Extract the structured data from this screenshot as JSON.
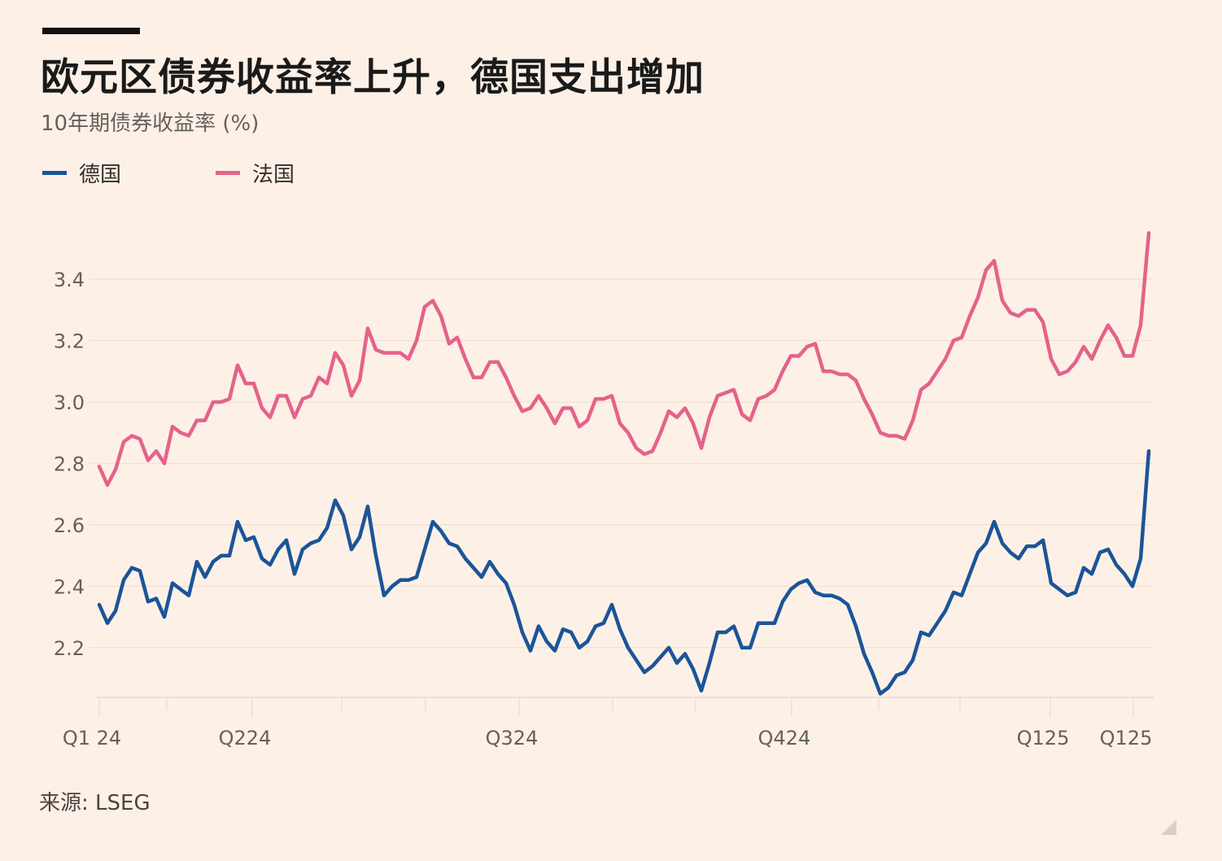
{
  "title": "欧元区债券收益率上升，德国支出增加",
  "subtitle": "10年期债券收益率 (%)",
  "source": "来源: LSEG",
  "chart_data": {
    "type": "line",
    "title": "欧元区债券收益率上升，德国支出增加",
    "ylabel": "10年期债券收益率 (%)",
    "xlabel": "",
    "ylim": [
      2.038,
      3.62
    ],
    "xlim": [
      0,
      129
    ],
    "grid": true,
    "legend_position": "top-left",
    "yticks": [
      2.2,
      2.4,
      2.6,
      2.8,
      3.0,
      3.2,
      3.4
    ],
    "ytick_labels": [
      "2.2",
      "2.4",
      "2.6",
      "2.8",
      "3.0",
      "3.2",
      "3.4"
    ],
    "xticks": [
      {
        "at": 0,
        "label": "Q1 24"
      },
      {
        "at": 18.8,
        "label": "Q224"
      },
      {
        "at": 51.6,
        "label": "Q324"
      },
      {
        "at": 85.1,
        "label": "Q424"
      },
      {
        "at": 116.9,
        "label": "Q125"
      },
      {
        "at": 127.1,
        "label": "Q125"
      }
    ],
    "minor_xticks": [
      8.3,
      29.8,
      40.1,
      63.1,
      73.3,
      95.8,
      105.8
    ],
    "series": [
      {
        "name": "德国",
        "color": "#1b5499",
        "values": [
          2.34,
          2.28,
          2.32,
          2.42,
          2.46,
          2.45,
          2.35,
          2.36,
          2.3,
          2.41,
          2.39,
          2.37,
          2.48,
          2.43,
          2.48,
          2.5,
          2.5,
          2.61,
          2.55,
          2.56,
          2.49,
          2.47,
          2.52,
          2.55,
          2.44,
          2.52,
          2.54,
          2.55,
          2.59,
          2.68,
          2.63,
          2.52,
          2.56,
          2.66,
          2.5,
          2.37,
          2.4,
          2.42,
          2.42,
          2.43,
          2.52,
          2.61,
          2.58,
          2.54,
          2.53,
          2.49,
          2.46,
          2.43,
          2.48,
          2.44,
          2.41,
          2.34,
          2.25,
          2.19,
          2.27,
          2.22,
          2.19,
          2.26,
          2.25,
          2.2,
          2.22,
          2.27,
          2.28,
          2.34,
          2.26,
          2.2,
          2.16,
          2.12,
          2.14,
          2.17,
          2.2,
          2.15,
          2.18,
          2.13,
          2.06,
          2.15,
          2.25,
          2.25,
          2.27,
          2.2,
          2.2,
          2.28,
          2.28,
          2.28,
          2.35,
          2.39,
          2.41,
          2.42,
          2.38,
          2.37,
          2.37,
          2.36,
          2.34,
          2.27,
          2.18,
          2.12,
          2.05,
          2.07,
          2.11,
          2.12,
          2.16,
          2.25,
          2.24,
          2.28,
          2.32,
          2.38,
          2.37,
          2.44,
          2.51,
          2.54,
          2.61,
          2.54,
          2.51,
          2.49,
          2.53,
          2.53,
          2.55,
          2.41,
          2.39,
          2.37,
          2.38,
          2.46,
          2.44,
          2.51,
          2.52,
          2.47,
          2.44,
          2.4,
          2.49,
          2.84
        ]
      },
      {
        "name": "法国",
        "color": "#e5628b",
        "values": [
          2.79,
          2.73,
          2.78,
          2.87,
          2.89,
          2.88,
          2.81,
          2.84,
          2.8,
          2.92,
          2.9,
          2.89,
          2.94,
          2.94,
          3.0,
          3.0,
          3.01,
          3.12,
          3.06,
          3.06,
          2.98,
          2.95,
          3.02,
          3.02,
          2.95,
          3.01,
          3.02,
          3.08,
          3.06,
          3.16,
          3.12,
          3.02,
          3.07,
          3.24,
          3.17,
          3.16,
          3.16,
          3.16,
          3.14,
          3.2,
          3.31,
          3.33,
          3.28,
          3.19,
          3.21,
          3.14,
          3.08,
          3.08,
          3.13,
          3.13,
          3.08,
          3.02,
          2.97,
          2.98,
          3.02,
          2.98,
          2.93,
          2.98,
          2.98,
          2.92,
          2.94,
          3.01,
          3.01,
          3.02,
          2.93,
          2.9,
          2.85,
          2.83,
          2.84,
          2.9,
          2.97,
          2.95,
          2.98,
          2.93,
          2.85,
          2.95,
          3.02,
          3.03,
          3.04,
          2.96,
          2.94,
          3.01,
          3.02,
          3.04,
          3.1,
          3.15,
          3.15,
          3.18,
          3.19,
          3.1,
          3.1,
          3.09,
          3.09,
          3.07,
          3.01,
          2.96,
          2.9,
          2.89,
          2.89,
          2.88,
          2.94,
          3.04,
          3.06,
          3.1,
          3.14,
          3.2,
          3.21,
          3.28,
          3.34,
          3.43,
          3.46,
          3.33,
          3.29,
          3.28,
          3.3,
          3.3,
          3.26,
          3.14,
          3.09,
          3.1,
          3.13,
          3.18,
          3.14,
          3.2,
          3.25,
          3.21,
          3.15,
          3.15,
          3.25,
          3.55
        ]
      }
    ]
  }
}
